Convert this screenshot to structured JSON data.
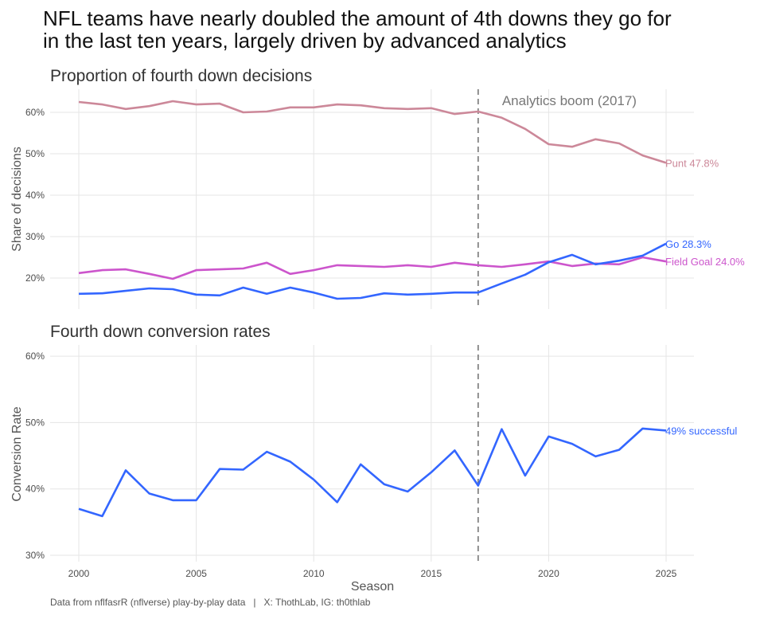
{
  "title_line1": "NFL teams have nearly doubled the amount of 4th downs they go for",
  "title_line2": "in the last ten years, largely driven by advanced analytics",
  "caption": "Data from nflfasrR (nflverse) play-by-play data   |   X: ThothLab, IG: th0thlab",
  "chart_data": [
    {
      "type": "line",
      "title": "Proportion of fourth down decisions",
      "xlabel": "",
      "ylabel": "Share of decisions",
      "xlim": [
        1999,
        2026
      ],
      "ylim": [
        13,
        66
      ],
      "yticks": [
        20,
        30,
        40,
        50,
        60
      ],
      "ytick_labels": [
        "20%",
        "30%",
        "40%",
        "50%",
        "60%"
      ],
      "xticks": [
        2000,
        2005,
        2010,
        2015,
        2020,
        2025
      ],
      "grid": true,
      "x": [
        2000,
        2001,
        2002,
        2003,
        2004,
        2005,
        2006,
        2007,
        2008,
        2009,
        2010,
        2011,
        2012,
        2013,
        2014,
        2015,
        2016,
        2017,
        2018,
        2019,
        2020,
        2021,
        2022,
        2023,
        2024,
        2025
      ],
      "series": [
        {
          "name": "Punt",
          "end_label": "Punt 47.8%",
          "color": "#cc8899",
          "values": [
            62.5,
            61.9,
            60.8,
            61.5,
            62.7,
            61.9,
            62.1,
            60.0,
            60.2,
            61.2,
            61.2,
            61.9,
            61.7,
            61.0,
            60.8,
            61.0,
            59.6,
            60.2,
            58.7,
            56.0,
            52.3,
            51.7,
            53.5,
            52.5,
            49.6,
            47.8
          ]
        },
        {
          "name": "Field Goal",
          "end_label": "Field Goal 24.0%",
          "color": "#cc55cc",
          "values": [
            21.2,
            21.9,
            22.1,
            21.0,
            19.8,
            21.9,
            22.1,
            22.3,
            23.7,
            21.0,
            21.9,
            23.1,
            22.9,
            22.7,
            23.1,
            22.7,
            23.7,
            23.1,
            22.7,
            23.3,
            24.0,
            22.9,
            23.5,
            23.3,
            25.0,
            24.0
          ]
        },
        {
          "name": "Go",
          "end_label": "Go 28.3%",
          "color": "#3366ff",
          "values": [
            16.2,
            16.3,
            16.9,
            17.5,
            17.3,
            16.0,
            15.8,
            17.7,
            16.2,
            17.7,
            16.5,
            15.0,
            15.2,
            16.3,
            16.0,
            16.2,
            16.5,
            16.5,
            18.7,
            20.8,
            23.8,
            25.6,
            23.3,
            24.2,
            25.4,
            28.3
          ]
        }
      ],
      "vline": {
        "x": 2017,
        "style": "dashed",
        "color": "#777777",
        "label": "Analytics boom (2017)"
      }
    },
    {
      "type": "line",
      "title": "Fourth down conversion rates",
      "xlabel": "Season",
      "ylabel": "Conversion Rate",
      "xlim": [
        1999,
        2026
      ],
      "ylim": [
        29,
        62
      ],
      "yticks": [
        30,
        40,
        50,
        60
      ],
      "ytick_labels": [
        "30%",
        "40%",
        "50%",
        "60%"
      ],
      "xticks": [
        2000,
        2005,
        2010,
        2015,
        2020,
        2025
      ],
      "xtick_labels": [
        "2000",
        "2005",
        "2010",
        "2015",
        "2020",
        "2025"
      ],
      "grid": true,
      "x": [
        2000,
        2001,
        2002,
        2003,
        2004,
        2005,
        2006,
        2007,
        2008,
        2009,
        2010,
        2011,
        2012,
        2013,
        2014,
        2015,
        2016,
        2017,
        2018,
        2019,
        2020,
        2021,
        2022,
        2023,
        2024,
        2025
      ],
      "series": [
        {
          "end_label": "49% successful",
          "color": "#3366ff",
          "values": [
            37.0,
            35.9,
            42.8,
            39.3,
            38.3,
            38.3,
            43.0,
            42.9,
            45.6,
            44.1,
            41.4,
            38.0,
            43.7,
            40.7,
            39.6,
            42.5,
            45.8,
            40.5,
            49.0,
            42.0,
            47.9,
            46.8,
            44.9,
            45.9,
            49.1,
            48.8
          ]
        }
      ],
      "vline": {
        "x": 2017,
        "style": "dashed",
        "color": "#777777"
      }
    }
  ]
}
